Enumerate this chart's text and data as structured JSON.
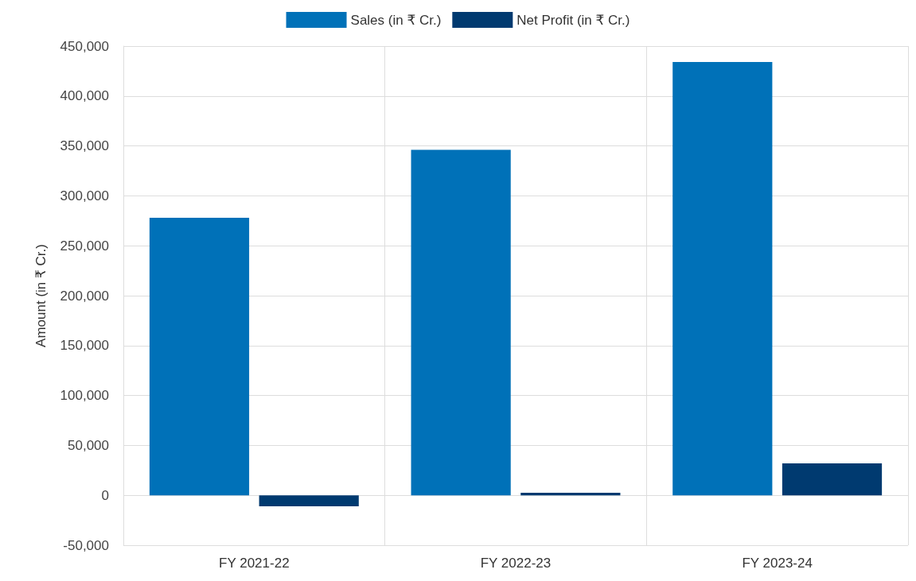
{
  "chart_data": {
    "type": "bar",
    "ylabel": "Amount (in ₹ Cr.)",
    "categories": [
      "FY 2021-22",
      "FY 2022-23",
      "FY 2023-24"
    ],
    "series": [
      {
        "name": "Sales (in ₹ Cr.)",
        "color": "#0071b8",
        "values": [
          278000,
          346000,
          434000
        ]
      },
      {
        "name": "Net Profit (in ₹ Cr.)",
        "color": "#003a70",
        "values": [
          -11000,
          2500,
          32000
        ]
      }
    ],
    "ylim": [
      -50000,
      450000
    ],
    "yticks": [
      {
        "value": -50000,
        "label": "-50,000"
      },
      0,
      {
        "value": 50000,
        "label": "50,000"
      },
      {
        "value": 100000,
        "label": "100,000"
      },
      {
        "value": 150000,
        "label": "150,000"
      },
      {
        "value": 200000,
        "label": "200,000"
      },
      {
        "value": 250000,
        "label": "250,000"
      },
      {
        "value": 300000,
        "label": "300,000"
      },
      {
        "value": 350000,
        "label": "350,000"
      },
      {
        "value": 400000,
        "label": "400,000"
      },
      {
        "value": 450000,
        "label": "450,000"
      }
    ],
    "grid": true,
    "legend": "top"
  }
}
